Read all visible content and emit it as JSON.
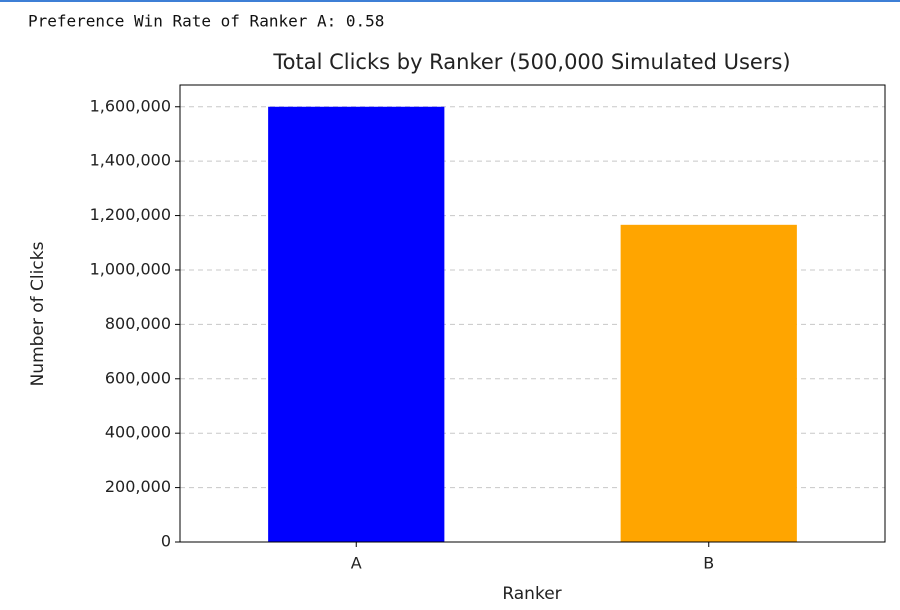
{
  "output_text": "Preference Win Rate of Ranker A: 0.58",
  "chart_data": {
    "type": "bar",
    "title": "Total Clicks by Ranker (500,000 Simulated Users)",
    "x_label": "Ranker",
    "y_label": "Number of Clicks",
    "categories": [
      "A",
      "B"
    ],
    "values": [
      1600000,
      1166000
    ],
    "colors": [
      "#0000ff",
      "#ffa500"
    ],
    "ylim": [
      0,
      1680000
    ],
    "yticks": [
      0,
      {
        "value": 200000,
        "label": "200,000"
      },
      {
        "value": 400000,
        "label": "400,000"
      },
      {
        "value": 600000,
        "label": "600,000"
      },
      {
        "value": 800000,
        "label": "800,000"
      },
      {
        "value": 1000000,
        "label": "1,000,000"
      },
      {
        "value": 1200000,
        "label": "1,200,000"
      },
      {
        "value": 1400000,
        "label": "1,400,000"
      },
      {
        "value": 1600000,
        "label": "1,600,000"
      }
    ],
    "grid": true
  }
}
